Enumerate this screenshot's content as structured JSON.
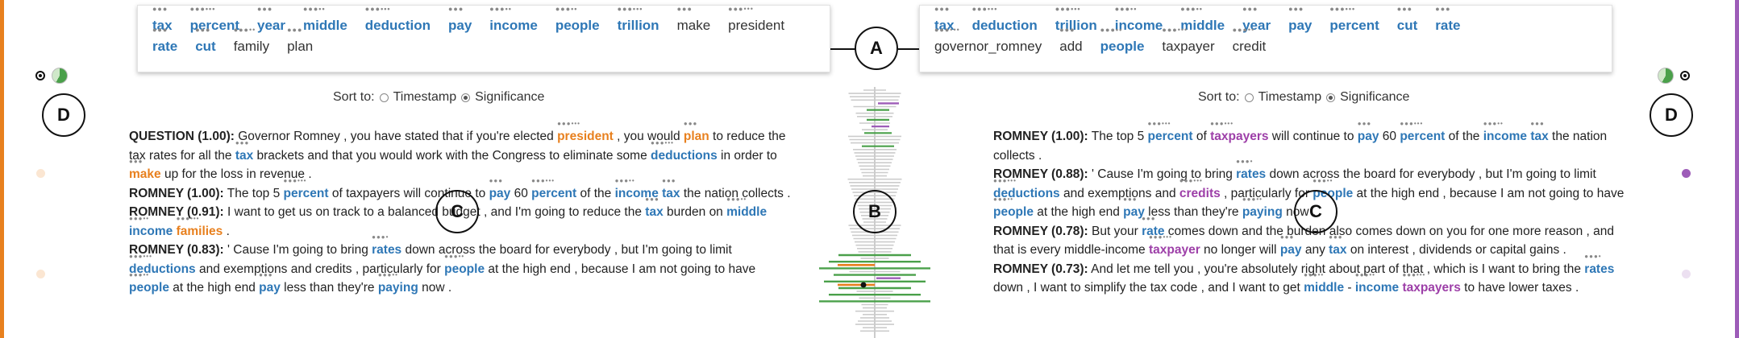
{
  "left_keywords": [
    {
      "text": "tax",
      "style": "bold"
    },
    {
      "text": "percent",
      "style": "bold"
    },
    {
      "text": "year",
      "style": "bold"
    },
    {
      "text": "middle",
      "style": "bold"
    },
    {
      "text": "deduction",
      "style": "bold"
    },
    {
      "text": "pay",
      "style": "bold"
    },
    {
      "text": "income",
      "style": "bold"
    },
    {
      "text": "people",
      "style": "bold"
    },
    {
      "text": "trillion",
      "style": "bold"
    },
    {
      "text": "make",
      "style": "plain"
    },
    {
      "text": "president",
      "style": "plain"
    },
    {
      "text": "rate",
      "style": "bold"
    },
    {
      "text": "cut",
      "style": "bold"
    },
    {
      "text": "family",
      "style": "plain"
    },
    {
      "text": "plan",
      "style": "plain"
    }
  ],
  "right_keywords": [
    {
      "text": "tax",
      "style": "bold"
    },
    {
      "text": "deduction",
      "style": "bold"
    },
    {
      "text": "trillion",
      "style": "bold"
    },
    {
      "text": "income",
      "style": "bold"
    },
    {
      "text": "middle",
      "style": "bold"
    },
    {
      "text": "year",
      "style": "bold"
    },
    {
      "text": "pay",
      "style": "bold"
    },
    {
      "text": "percent",
      "style": "bold"
    },
    {
      "text": "cut",
      "style": "bold"
    },
    {
      "text": "rate",
      "style": "bold"
    },
    {
      "text": "governor_romney",
      "style": "plain"
    },
    {
      "text": "add",
      "style": "plain"
    },
    {
      "text": "people",
      "style": "bold"
    },
    {
      "text": "taxpayer",
      "style": "plain"
    },
    {
      "text": "credit",
      "style": "plain"
    }
  ],
  "labels": {
    "a": "A",
    "b": "B",
    "c": "C",
    "d": "D"
  },
  "sort": {
    "label": "Sort to:",
    "option1": "Timestamp",
    "option2": "Significance"
  },
  "left_entries": [
    {
      "speaker": "QUESTION (1.00):",
      "tokens": [
        {
          "t": " Governor Romney , you have stated that if you're elected "
        },
        {
          "t": "president",
          "c": "orange"
        },
        {
          "t": " , you would "
        },
        {
          "t": "plan",
          "c": "orange"
        },
        {
          "t": " to reduce the tax rates for all the "
        },
        {
          "t": "tax",
          "c": "blue"
        },
        {
          "t": " brackets and that you would work with the Congress to eliminate some "
        },
        {
          "t": "deductions",
          "c": "blue"
        },
        {
          "t": " in order to "
        },
        {
          "t": "make",
          "c": "orange"
        },
        {
          "t": " up for the loss in revenue ."
        }
      ]
    },
    {
      "speaker": "ROMNEY (1.00):",
      "tokens": [
        {
          "t": " The top 5 "
        },
        {
          "t": "percent",
          "c": "blue"
        },
        {
          "t": " of taxpayers will continue to "
        },
        {
          "t": "pay",
          "c": "blue"
        },
        {
          "t": " 60 "
        },
        {
          "t": "percent",
          "c": "blue"
        },
        {
          "t": " of the "
        },
        {
          "t": "income",
          "c": "blue"
        },
        {
          "t": " "
        },
        {
          "t": "tax",
          "c": "blue"
        },
        {
          "t": " the nation collects ."
        }
      ]
    },
    {
      "speaker": "ROMNEY (0.91):",
      "tokens": [
        {
          "t": " I want to get us on track to a balanced budget , and I'm going to reduce the "
        },
        {
          "t": "tax",
          "c": "blue"
        },
        {
          "t": " burden on "
        },
        {
          "t": "middle",
          "c": "blue"
        },
        {
          "t": " "
        },
        {
          "t": "income",
          "c": "blue"
        },
        {
          "t": " "
        },
        {
          "t": "families",
          "c": "orange"
        },
        {
          "t": " ."
        }
      ]
    },
    {
      "speaker": "ROMNEY (0.83):",
      "tokens": [
        {
          "t": " ' Cause I'm going to bring "
        },
        {
          "t": "rates",
          "c": "blue"
        },
        {
          "t": " down across the board for everybody , but I'm going to limit "
        },
        {
          "t": "deductions",
          "c": "blue"
        },
        {
          "t": " and exemptions and credits , particularly for "
        },
        {
          "t": "people",
          "c": "blue"
        },
        {
          "t": " at the high end , because I am not going to have "
        },
        {
          "t": "people",
          "c": "blue"
        },
        {
          "t": " at the high end "
        },
        {
          "t": "pay",
          "c": "blue"
        },
        {
          "t": " less than they're "
        },
        {
          "t": "paying",
          "c": "blue"
        },
        {
          "t": " now ."
        }
      ]
    }
  ],
  "right_entries": [
    {
      "speaker": "ROMNEY (1.00):",
      "tokens": [
        {
          "t": " The top 5 "
        },
        {
          "t": "percent",
          "c": "blue"
        },
        {
          "t": " of "
        },
        {
          "t": "taxpayers",
          "c": "purple"
        },
        {
          "t": " will continue to "
        },
        {
          "t": "pay",
          "c": "blue"
        },
        {
          "t": " 60 "
        },
        {
          "t": "percent",
          "c": "blue"
        },
        {
          "t": " of the "
        },
        {
          "t": "income",
          "c": "blue"
        },
        {
          "t": " "
        },
        {
          "t": "tax",
          "c": "blue"
        },
        {
          "t": " the nation collects ."
        }
      ]
    },
    {
      "speaker": "ROMNEY (0.88):",
      "tokens": [
        {
          "t": " ' Cause I'm going to bring "
        },
        {
          "t": "rates",
          "c": "blue"
        },
        {
          "t": " down across the board for everybody , but I'm going to limit "
        },
        {
          "t": "deductions",
          "c": "blue"
        },
        {
          "t": " and exemptions and "
        },
        {
          "t": "credits",
          "c": "purple"
        },
        {
          "t": " , particularly for "
        },
        {
          "t": "people",
          "c": "blue"
        },
        {
          "t": " at the high end , because I am not going to have "
        },
        {
          "t": "people",
          "c": "blue"
        },
        {
          "t": " at the high end "
        },
        {
          "t": "pay",
          "c": "blue"
        },
        {
          "t": " less than they're "
        },
        {
          "t": "paying",
          "c": "blue"
        },
        {
          "t": " now ."
        }
      ]
    },
    {
      "speaker": "ROMNEY (0.78):",
      "tokens": [
        {
          "t": " But your "
        },
        {
          "t": "rate",
          "c": "blue"
        },
        {
          "t": " comes down and the burden also comes down on you for one more reason , and that is every middle-income "
        },
        {
          "t": "taxpayer",
          "c": "purple"
        },
        {
          "t": " no longer will "
        },
        {
          "t": "pay",
          "c": "blue"
        },
        {
          "t": " any "
        },
        {
          "t": "tax",
          "c": "blue"
        },
        {
          "t": " on interest , dividends or capital gains ."
        }
      ]
    },
    {
      "speaker": "ROMNEY (0.73):",
      "tokens": [
        {
          "t": " And let me tell you , you're absolutely right about part of that , which is I want to bring the "
        },
        {
          "t": "rates",
          "c": "blue"
        },
        {
          "t": " down , I want to simplify the tax code , and I want to get "
        },
        {
          "t": "middle",
          "c": "blue"
        },
        {
          "t": " - "
        },
        {
          "t": "income",
          "c": "blue"
        },
        {
          "t": " "
        },
        {
          "t": "taxpayers",
          "c": "purple"
        },
        {
          "t": " to have lower taxes ."
        }
      ]
    }
  ],
  "colors": {
    "orange": "#e8801e",
    "purple": "#9d5cb8",
    "blue": "#2e77b6",
    "green": "#4aa04a",
    "gray": "#cccccc"
  }
}
